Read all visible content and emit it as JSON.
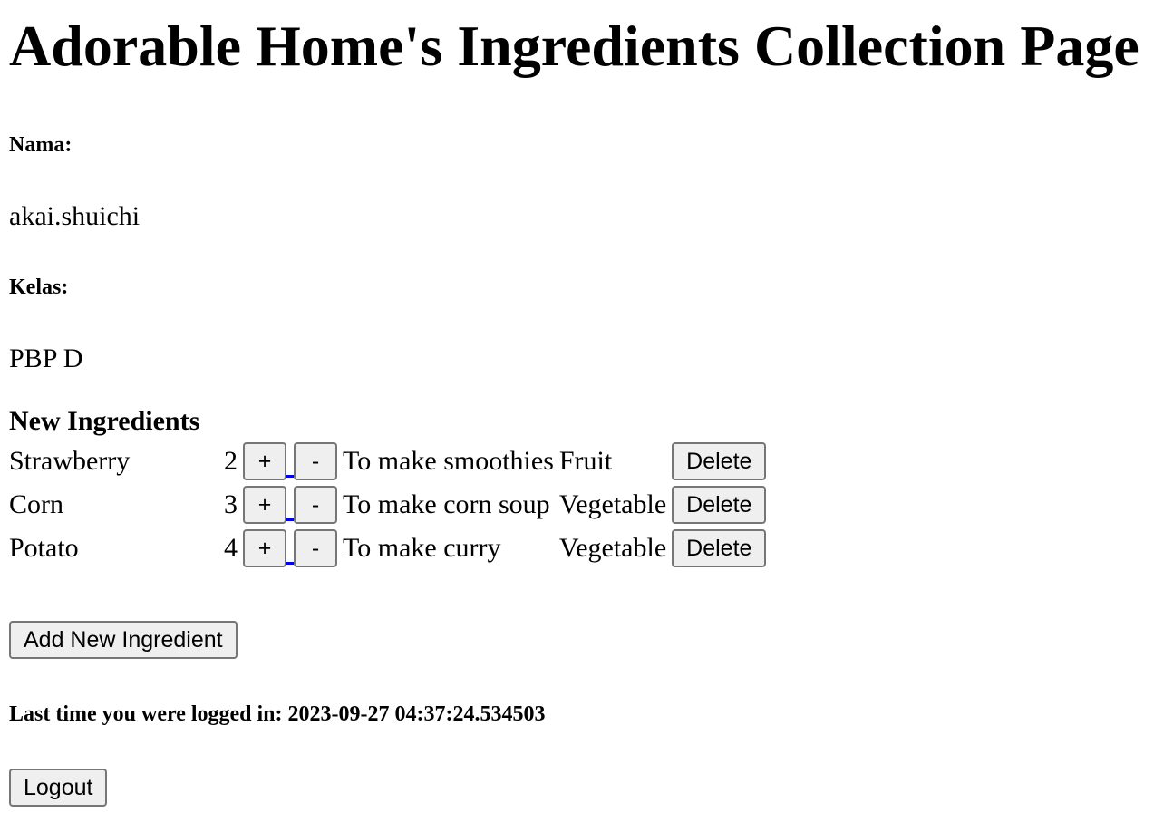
{
  "header": {
    "title": "Adorable Home's Ingredients Collection Page"
  },
  "profile": {
    "name_label": "Nama:",
    "name_value": "akai.shuichi",
    "class_label": "Kelas:",
    "class_value": "PBP D"
  },
  "table": {
    "header": "New Ingredients",
    "increment_label": "+",
    "decrement_label": "-",
    "delete_label": "Delete",
    "rows": [
      {
        "name": "Strawberry",
        "amount": "2",
        "description": "To make smoothies",
        "category": "Fruit"
      },
      {
        "name": "Corn",
        "amount": "3",
        "description": "To make corn soup",
        "category": "Vegetable"
      },
      {
        "name": "Potato",
        "amount": "4",
        "description": "To make curry",
        "category": "Vegetable"
      }
    ]
  },
  "actions": {
    "add_label": "Add New Ingredient",
    "logout_label": "Logout"
  },
  "session": {
    "last_login_text": "Last time you were logged in: 2023-09-27 04:37:24.534503"
  },
  "colors": {
    "link": "#0000ee",
    "button_bg": "#efefef",
    "button_border": "#767676"
  }
}
